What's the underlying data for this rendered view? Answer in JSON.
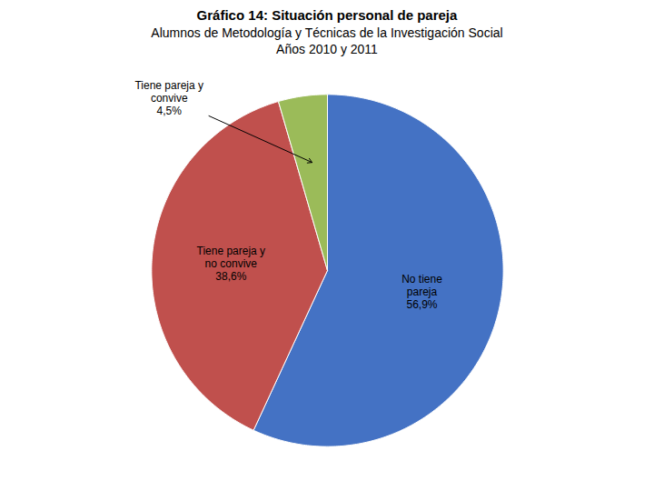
{
  "chart_data": {
    "type": "pie",
    "title": "Gráfico 14: Situación personal de pareja",
    "subtitle": [
      "Alumnos de Metodología y Técnicas de la Investigación Social",
      "Años 2010 y 2011"
    ],
    "categories": [
      "No tiene\npareja",
      "Tiene pareja y\nno convive",
      "Tiene pareja y\nconvive"
    ],
    "values": [
      56.9,
      38.6,
      4.5
    ],
    "value_labels": [
      "56,9%",
      "38,6%",
      "4,5%"
    ],
    "colors": [
      "#4472C4",
      "#C0504D",
      "#9BBB59"
    ],
    "data_labels": true
  }
}
